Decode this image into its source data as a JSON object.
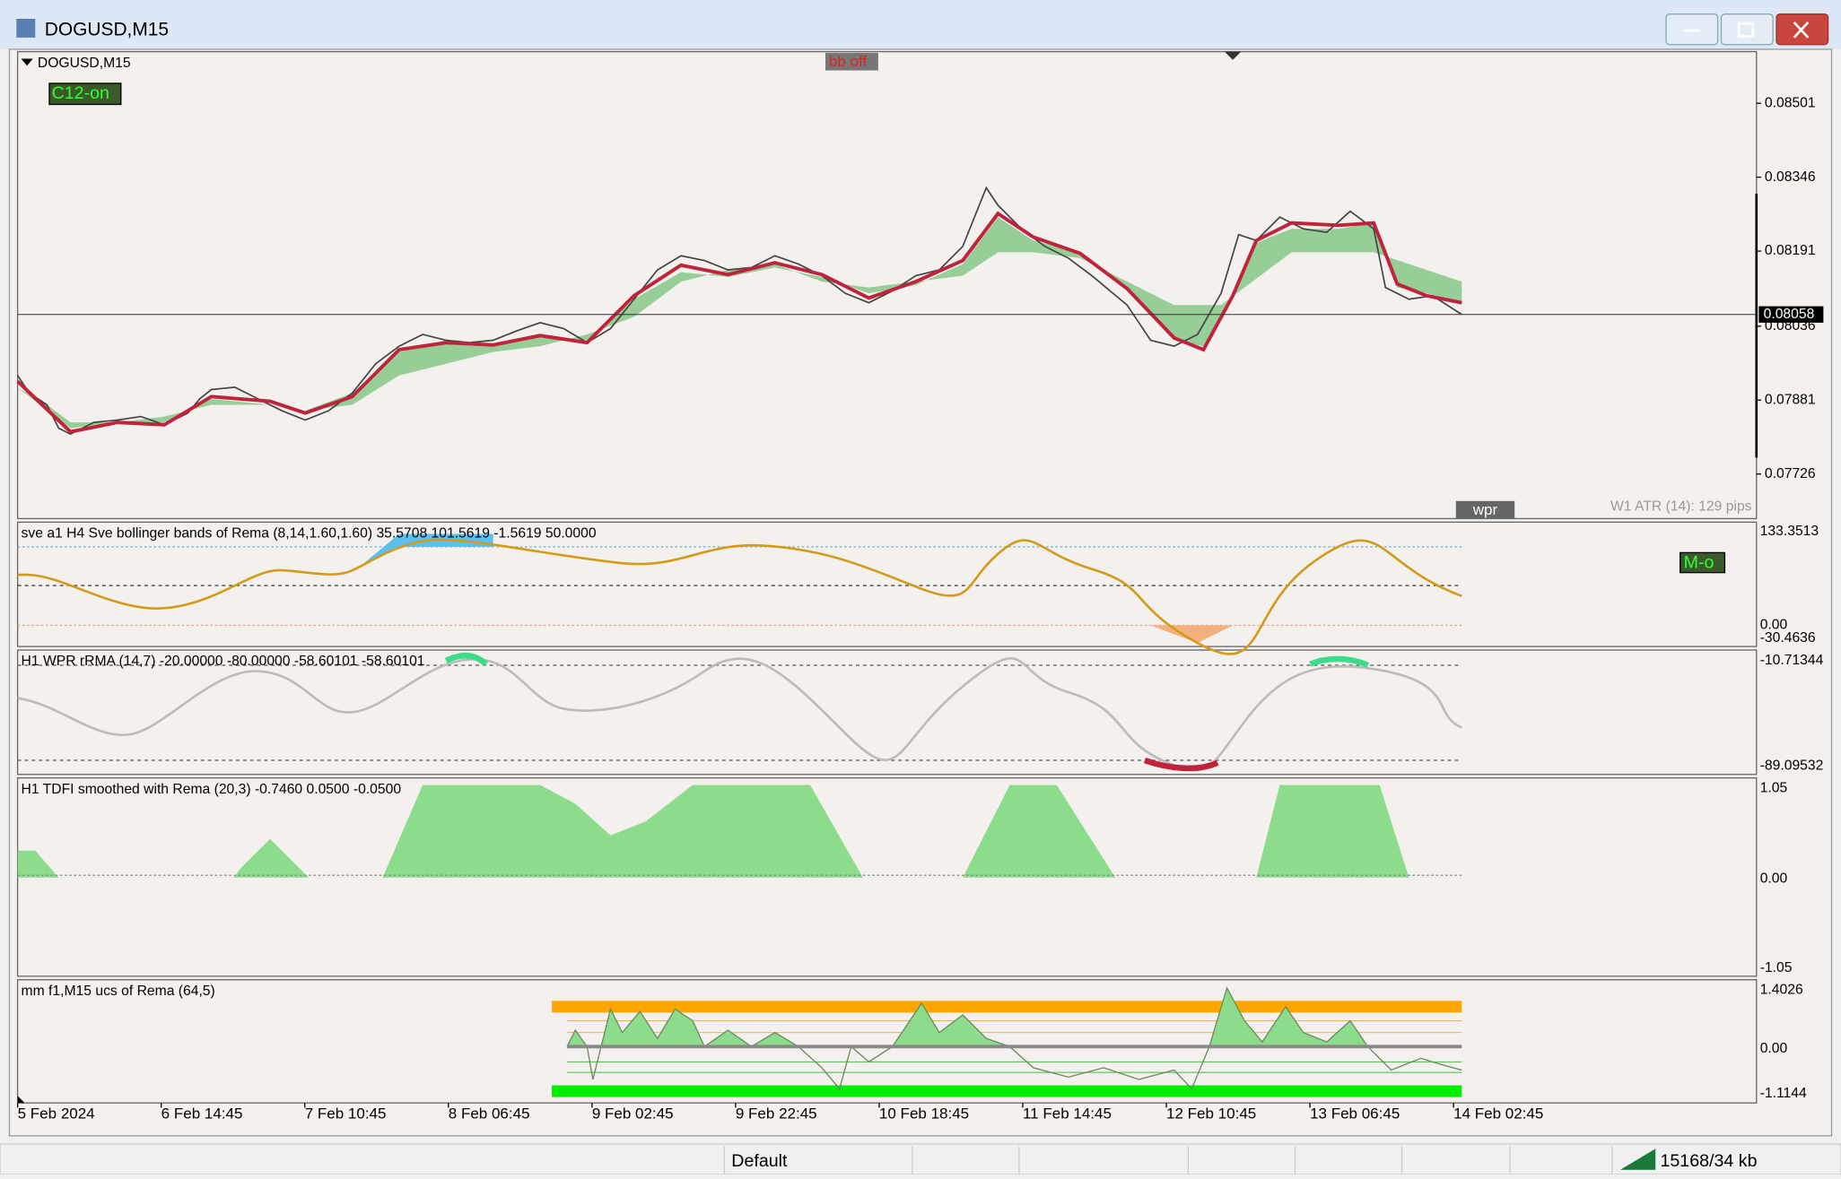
{
  "window": {
    "title": "DOGUSD,M15"
  },
  "main_panel": {
    "symbol": "DOGUSD,M15",
    "badge_c12": "C12-on",
    "badge_bb": "bb off",
    "price_labels": [
      "0.08501",
      "0.08346",
      "0.08191",
      "0.08036",
      "0.07881",
      "0.07726"
    ],
    "current_price": "0.08058",
    "wpr_button": "wpr",
    "atr": "W1 ATR (14): 129 pips"
  },
  "panels": [
    {
      "label": "sve a1 H4 Sve bollinger bands of Rema (8,14,1.60,1.60) 35.5708 101.5619 -1.5619 50.0000",
      "scale": [
        "133.3513",
        "0.00",
        "-30.4636"
      ],
      "badge": "M-o"
    },
    {
      "label": "H1 WPR  rRMA (14,7) -20.00000 -80.00000 -58.60101 -58.60101",
      "scale": [
        "-10.71344",
        "-89.09532"
      ]
    },
    {
      "label": "H1 TDFI smoothed with Rema (20,3) -0.7460 0.0500 -0.0500",
      "scale": [
        "1.05",
        "0.00",
        "-1.05"
      ]
    },
    {
      "label": "mm f1,M15 ucs of Rema (64,5)",
      "scale": [
        "1.4026",
        "0.00",
        "-1.1144"
      ]
    }
  ],
  "time_axis": [
    "5 Feb 2024",
    "6 Feb 14:45",
    "7 Feb 10:45",
    "8 Feb 06:45",
    "9 Feb 02:45",
    "9 Feb 22:45",
    "10 Feb 18:45",
    "11 Feb 14:45",
    "12 Feb 10:45",
    "13 Feb 06:45",
    "14 Feb 02:45"
  ],
  "status_bar": {
    "profile": "Default",
    "memory": "15168/34 kb"
  }
}
